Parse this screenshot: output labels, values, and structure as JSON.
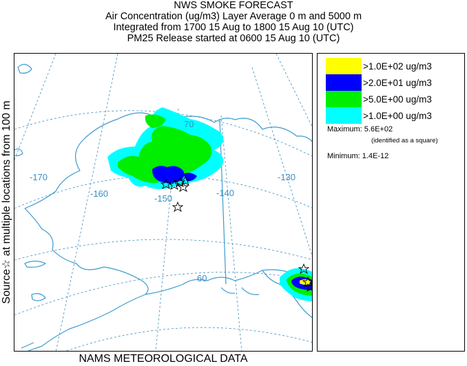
{
  "title": {
    "line1": "NWS SMOKE FORECAST",
    "line2": "Air Concentration (ug/m3) Layer Average    0 m and  5000 m",
    "line3": "Integrated from 1700 15 Aug to 1800 15 Aug 10 (UTC)",
    "line4": "PM25 Release started at 0600 15 Aug 10 (UTC)"
  },
  "side_label": "Source☆   at multiple locations   from   100 m",
  "bottom_label": "NAMS METEOROLOGICAL DATA",
  "map": {
    "grid_labels": {
      "lon_170": "-170",
      "lon_160": "-160",
      "lon_150": "-150",
      "lon_140": "-140",
      "lon_130": "-130",
      "lat_70": "70",
      "lat_60": "60"
    },
    "coast_color": "#3a9bd0",
    "grid_color": "#3a8fc0"
  },
  "legend": {
    "items": [
      {
        "label": ">1.0E+02 ug/m3",
        "color": "#ffff00"
      },
      {
        "label": ">2.0E+01 ug/m3",
        "color": "#0000ff"
      },
      {
        "label": ">5.0E+00 ug/m3",
        "color": "#00ee00"
      },
      {
        "label": ">1.0E+00 ug/m3",
        "color": "#00ffff"
      }
    ],
    "maximum": "Maximum: 5.6E+02",
    "maximum_note": "(identified as a square)",
    "minimum": "Minimum: 1.4E-12"
  }
}
